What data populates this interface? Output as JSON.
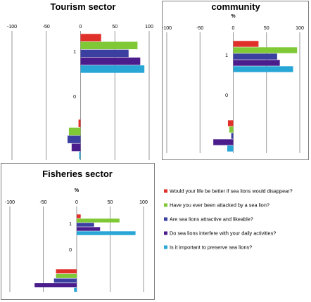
{
  "colors": {
    "red": "#e0302a",
    "green": "#7fc936",
    "indigo": "#3a3fa0",
    "purple": "#4b1d8c",
    "cyan": "#28a6d6"
  },
  "legend": [
    {
      "label": "Would your life be better if sea lions would disappear?",
      "color": "red"
    },
    {
      "label": "Have you ever been attacked by a sea lion?",
      "color": "green"
    },
    {
      "label": "Are sea lions attractive and likeable?",
      "color": "indigo"
    },
    {
      "label": "Do sea lions interfere with your daily activities?",
      "color": "purple"
    },
    {
      "label": "Is it important  to preserve sea lions?",
      "color": "cyan"
    }
  ],
  "chart_data": [
    {
      "type": "bar",
      "orientation": "horizontal",
      "title": "Tourism sector",
      "unit_label": "",
      "xlim": [
        -100,
        100
      ],
      "x_ticks": [
        -100,
        -50,
        0,
        50,
        100
      ],
      "y_ticks": [
        1,
        0
      ],
      "series": [
        {
          "name": "Would your life be better if sea lions would disappear?",
          "color": "red",
          "values": [
            30,
            -3
          ]
        },
        {
          "name": "Have you ever been attacked by a sea lion?",
          "color": "green",
          "values": [
            83,
            -17
          ]
        },
        {
          "name": "Are sea lions attractive and likeable?",
          "color": "indigo",
          "values": [
            70,
            -19
          ]
        },
        {
          "name": "Do sea lions interfere with your daily activities?",
          "color": "purple",
          "values": [
            87,
            -13
          ]
        },
        {
          "name": "Is it important  to preserve sea lions?",
          "color": "cyan",
          "values": [
            93,
            -2
          ]
        }
      ]
    },
    {
      "type": "bar",
      "orientation": "horizontal",
      "title": "community",
      "unit_label": "%",
      "xlim": [
        -100,
        100
      ],
      "x_ticks": [
        -100,
        -50,
        0,
        50,
        100
      ],
      "y_ticks": [
        1,
        0
      ],
      "series": [
        {
          "name": "Would your life be better if sea lions would disappear?",
          "color": "red",
          "values": [
            38,
            -8
          ]
        },
        {
          "name": "Have you ever been attacked by a sea lion?",
          "color": "green",
          "values": [
            96,
            -6
          ]
        },
        {
          "name": "Are sea lions attractive and likeable?",
          "color": "indigo",
          "values": [
            66,
            -3
          ]
        },
        {
          "name": "Do sea lions interfere with your daily activities?",
          "color": "purple",
          "values": [
            70,
            -30
          ]
        },
        {
          "name": "Is it important  to preserve sea lions?",
          "color": "cyan",
          "values": [
            90,
            -9
          ]
        }
      ]
    },
    {
      "type": "bar",
      "orientation": "horizontal",
      "title": "Fisheries sector",
      "unit_label": "%",
      "xlim": [
        -100,
        100
      ],
      "x_ticks": [
        -100,
        -50,
        0,
        50,
        100
      ],
      "y_ticks": [
        1,
        0
      ],
      "series": [
        {
          "name": "Would your life be better if sea lions would disappear?",
          "color": "red",
          "values": [
            6,
            -31
          ]
        },
        {
          "name": "Have you ever been attacked by a sea lion?",
          "color": "green",
          "values": [
            64,
            -31
          ]
        },
        {
          "name": "Are sea lions attractive and likeable?",
          "color": "indigo",
          "values": [
            26,
            -34
          ]
        },
        {
          "name": "Do sea lions interfere with your daily activities?",
          "color": "purple",
          "values": [
            35,
            -63
          ]
        },
        {
          "name": "Is it important  to preserve sea lions?",
          "color": "cyan",
          "values": [
            88,
            -4
          ]
        }
      ]
    }
  ]
}
